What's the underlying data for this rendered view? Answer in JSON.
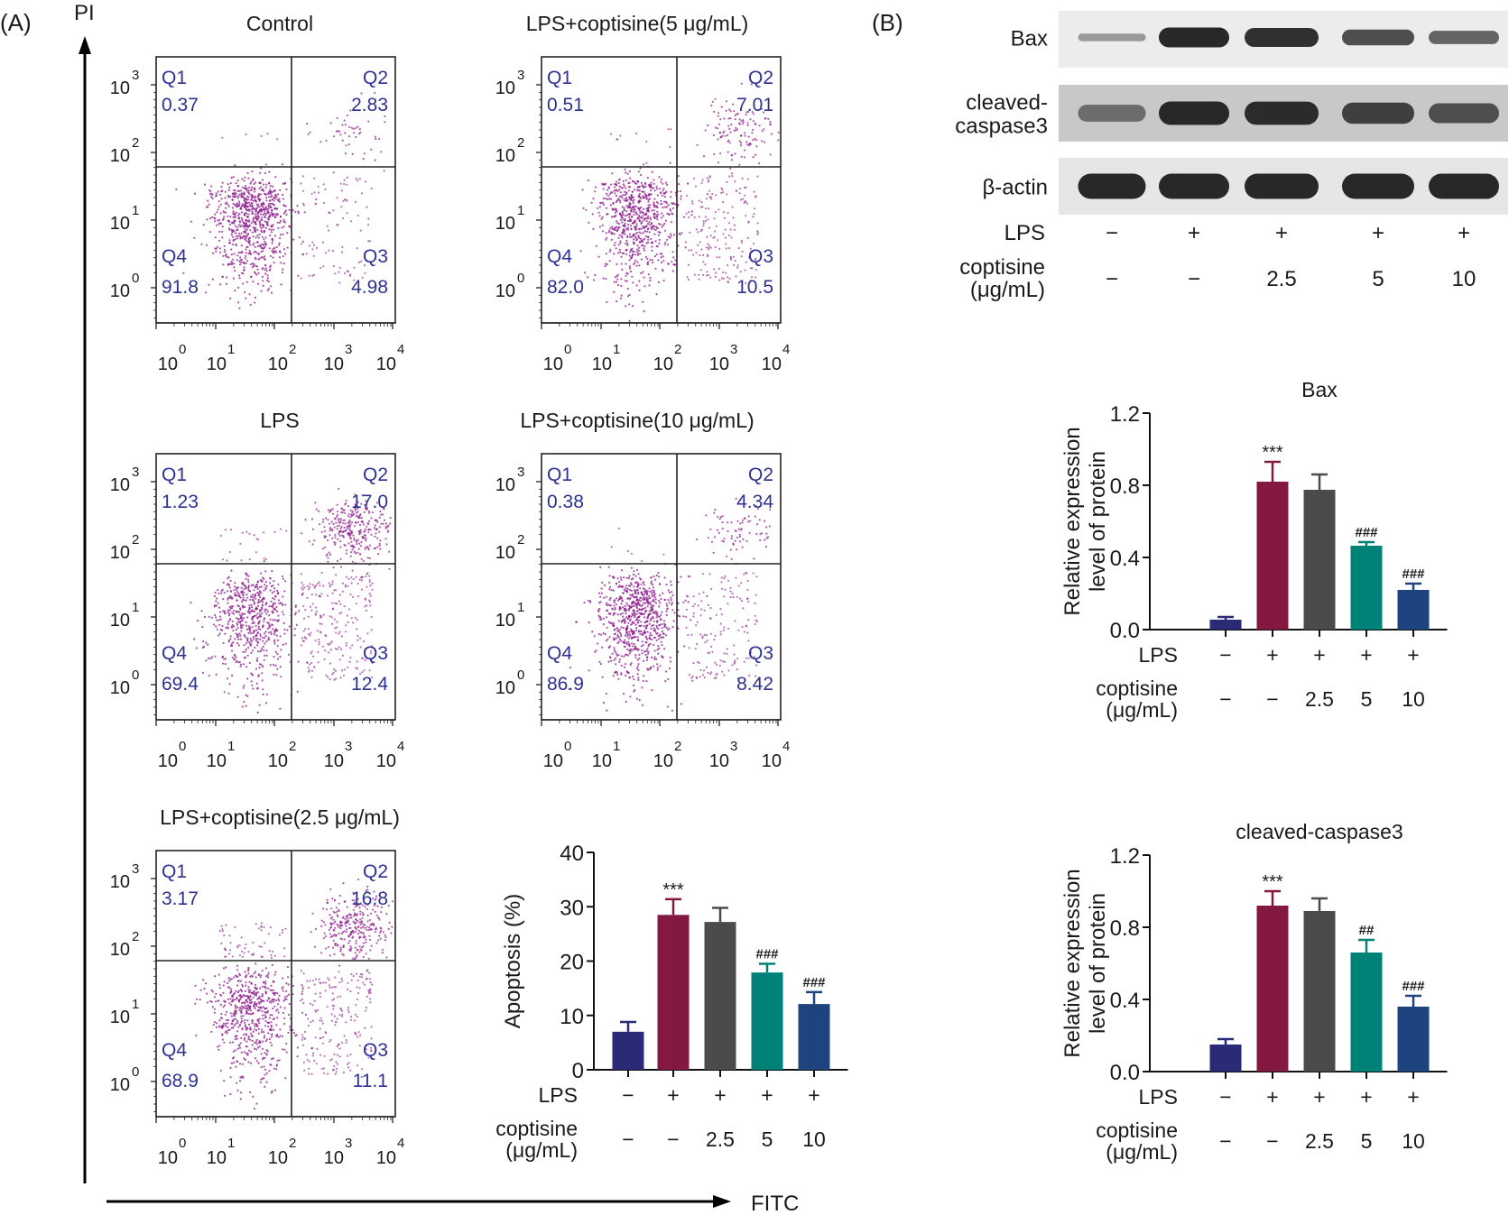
{
  "panel_labels": {
    "a": "(A)",
    "b": "(B)"
  },
  "axes_global": {
    "y_label": "PI",
    "x_label": "FITC"
  },
  "flow_ticks": {
    "y": [
      {
        "base": "10",
        "exp": "3"
      },
      {
        "base": "10",
        "exp": "2"
      },
      {
        "base": "10",
        "exp": "1"
      },
      {
        "base": "10",
        "exp": "0"
      }
    ],
    "x": [
      {
        "base": "10",
        "exp": "0"
      },
      {
        "base": "10",
        "exp": "1"
      },
      {
        "base": "10",
        "exp": "2"
      },
      {
        "base": "10",
        "exp": "3"
      },
      {
        "base": "10",
        "exp": "4"
      }
    ]
  },
  "flow_plots": [
    {
      "title": "Control",
      "q1": "0.37",
      "q2": "2.83",
      "q3": "4.98",
      "q4": "91.8"
    },
    {
      "title": "LPS+coptisine(5 μg/mL)",
      "q1": "0.51",
      "q2": "7.01",
      "q3": "10.5",
      "q4": "82.0"
    },
    {
      "title": "LPS",
      "q1": "1.23",
      "q2": "17.0",
      "q3": "12.4",
      "q4": "69.4"
    },
    {
      "title": "LPS+coptisine(10 μg/mL)",
      "q1": "0.38",
      "q2": "4.34",
      "q3": "8.42",
      "q4": "86.9"
    },
    {
      "title": "LPS+coptisine(2.5 μg/mL)",
      "q1": "3.17",
      "q2": "16.8",
      "q3": "11.1",
      "q4": "68.9"
    }
  ],
  "quadrant_labels": {
    "q1": "Q1",
    "q2": "Q2",
    "q3": "Q3",
    "q4": "Q4"
  },
  "treatment_rows": {
    "lps_label": "LPS",
    "coptisine_label": "coptisine",
    "unit_label": "(μg/mL)",
    "lps": [
      "−",
      "+",
      "+",
      "+",
      "+"
    ],
    "coptisine": [
      "−",
      "−",
      "2.5",
      "5",
      "10"
    ]
  },
  "western_blot": {
    "rows": [
      {
        "label": "Bax",
        "intensity": [
          0.25,
          1.0,
          0.95,
          0.75,
          0.6
        ]
      },
      {
        "label_line1": "cleaved-",
        "label_line2": "caspase3",
        "intensity": [
          0.55,
          1.0,
          0.98,
          0.85,
          0.75
        ]
      },
      {
        "label": "β-actin",
        "intensity": [
          1.0,
          1.0,
          1.0,
          1.0,
          1.0
        ]
      }
    ]
  },
  "colors": [
    "#2b2a77",
    "#831840",
    "#4b4b4b",
    "#008279",
    "#1d447f"
  ],
  "chart_data": [
    {
      "type": "bar",
      "title": "",
      "ylabel": "Apoptosis (%)",
      "categories": [
        "Control",
        "LPS",
        "LPS+coptisine 2.5",
        "LPS+coptisine 5",
        "LPS+coptisine 10"
      ],
      "values": [
        7.0,
        28.5,
        27.2,
        17.9,
        12.1
      ],
      "errors": [
        1.8,
        2.9,
        2.6,
        1.6,
        2.2
      ],
      "annotations": [
        "",
        "***",
        "",
        "###",
        "###"
      ],
      "ylim": [
        0,
        40
      ],
      "yticks": [
        "0",
        "10",
        "20",
        "30",
        "40"
      ]
    },
    {
      "type": "bar",
      "title": "Bax",
      "ylabel_line1": "Relative expression",
      "ylabel_line2": "level of protein",
      "categories": [
        "Control",
        "LPS",
        "LPS+coptisine 2.5",
        "LPS+coptisine 5",
        "LPS+coptisine 10"
      ],
      "values": [
        0.055,
        0.82,
        0.775,
        0.465,
        0.22
      ],
      "errors": [
        0.015,
        0.11,
        0.085,
        0.02,
        0.035
      ],
      "annotations": [
        "",
        "***",
        "",
        "###",
        "###"
      ],
      "ylim": [
        0,
        1.2
      ],
      "yticks": [
        "0.0",
        "0.4",
        "0.8",
        "1.2"
      ]
    },
    {
      "type": "bar",
      "title": "cleaved-caspase3",
      "ylabel_line1": "Relative expression",
      "ylabel_line2": "level of protein",
      "categories": [
        "Control",
        "LPS",
        "LPS+coptisine 2.5",
        "LPS+coptisine 5",
        "LPS+coptisine 10"
      ],
      "values": [
        0.15,
        0.92,
        0.89,
        0.66,
        0.36
      ],
      "errors": [
        0.03,
        0.08,
        0.07,
        0.07,
        0.06
      ],
      "annotations": [
        "",
        "***",
        "",
        "##",
        "###"
      ],
      "ylim": [
        0,
        1.2
      ],
      "yticks": [
        "0.0",
        "0.4",
        "0.8",
        "1.2"
      ]
    }
  ]
}
